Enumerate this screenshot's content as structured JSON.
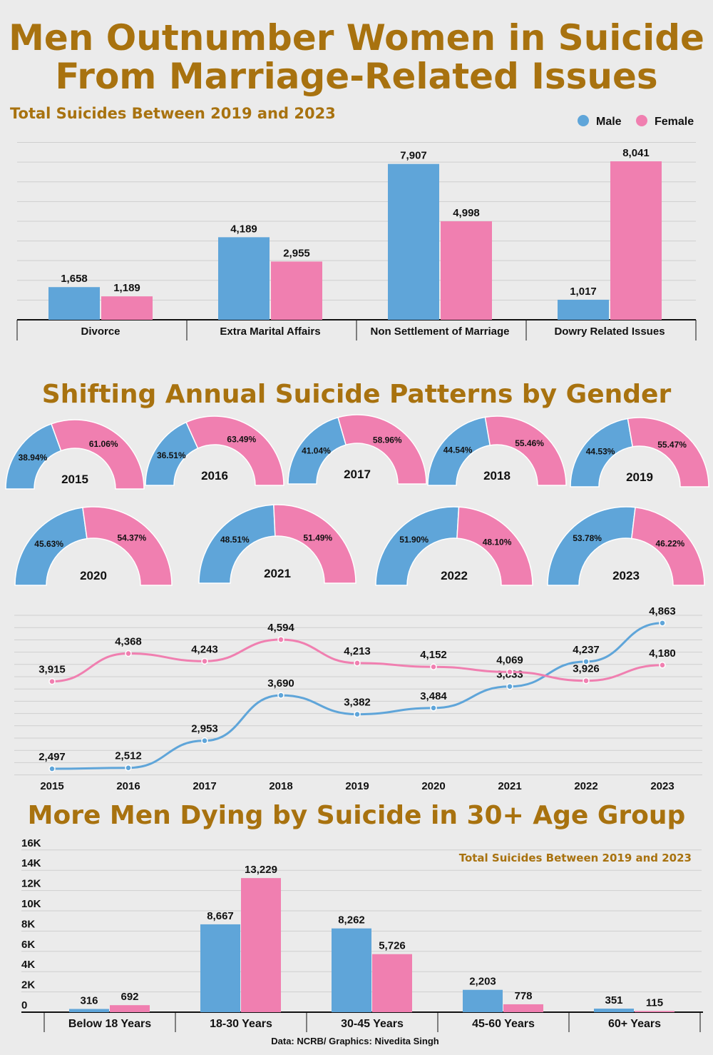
{
  "colors": {
    "male": "#5fa5d9",
    "female": "#f07fb0",
    "title": "#a8720f",
    "background": "#ebebeb",
    "grid": "#cfcfcf"
  },
  "header": {
    "title_line1": "Men Outnumber Women in Suicide",
    "title_line2": "From Marriage-Related Issues"
  },
  "section2_title": "Shifting Annual Suicide Patterns by Gender",
  "section3_title": "More Men Dying by Suicide in 30+ Age Group",
  "footer": {
    "source": "Data: NCRB/ Graphics: Nivedita Singh"
  },
  "chart_data": [
    {
      "type": "bar",
      "subtitle": "Total Suicides Between 2019 and 2023",
      "legend": {
        "placement": "top-right",
        "entries": [
          "Male",
          "Female"
        ]
      },
      "categories": [
        "Divorce",
        "Extra Marital Affairs",
        "Non Settlement of Marriage",
        "Dowry Related Issues"
      ],
      "series": [
        {
          "name": "Male",
          "values": [
            1658,
            4189,
            7907,
            1017
          ],
          "labels": [
            "1,658",
            "4,189",
            "7,907",
            "1,017"
          ]
        },
        {
          "name": "Female",
          "values": [
            1189,
            2955,
            4998,
            8041
          ],
          "labels": [
            "1,189",
            "2,955",
            "4,998",
            "8,041"
          ]
        }
      ],
      "ylim": [
        0,
        9000
      ],
      "grid": true
    },
    {
      "type": "pie",
      "style": "half-donut",
      "items": [
        {
          "year": "2015",
          "male": 38.94,
          "female": 61.06,
          "male_label": "38.94%",
          "female_label": "61.06%"
        },
        {
          "year": "2016",
          "male": 36.51,
          "female": 63.49,
          "male_label": "36.51%",
          "female_label": "63.49%"
        },
        {
          "year": "2017",
          "male": 41.04,
          "female": 58.96,
          "male_label": "41.04%",
          "female_label": "58.96%"
        },
        {
          "year": "2018",
          "male": 44.54,
          "female": 55.46,
          "male_label": "44.54%",
          "female_label": "55.46%"
        },
        {
          "year": "2019",
          "male": 44.53,
          "female": 55.47,
          "male_label": "44.53%",
          "female_label": "55.47%"
        },
        {
          "year": "2020",
          "male": 45.63,
          "female": 54.37,
          "male_label": "45.63%",
          "female_label": "54.37%"
        },
        {
          "year": "2021",
          "male": 48.51,
          "female": 51.49,
          "male_label": "48.51%",
          "female_label": "51.49%"
        },
        {
          "year": "2022",
          "male": 51.9,
          "female": 48.1,
          "male_label": "51.90%",
          "female_label": "48.10%"
        },
        {
          "year": "2023",
          "male": 53.78,
          "female": 46.22,
          "male_label": "53.78%",
          "female_label": "46.22%"
        }
      ]
    },
    {
      "type": "line",
      "x": [
        "2015",
        "2016",
        "2017",
        "2018",
        "2019",
        "2020",
        "2021",
        "2022",
        "2023"
      ],
      "series": [
        {
          "name": "Male",
          "values": [
            2497,
            2512,
            2953,
            3690,
            3382,
            3484,
            3833,
            4237,
            4863
          ],
          "labels": [
            "2,497",
            "2,512",
            "2,953",
            "3,690",
            "3,382",
            "3,484",
            "3,833",
            "4,237",
            "4,863"
          ]
        },
        {
          "name": "Female",
          "values": [
            3915,
            4368,
            4243,
            4594,
            4213,
            4152,
            4069,
            3926,
            4180
          ],
          "labels": [
            "3,915",
            "4,368",
            "4,243",
            "4,594",
            "4,213",
            "4,152",
            "4,069",
            "3,926",
            "4,180"
          ]
        }
      ],
      "ylim": [
        2370,
        5000
      ],
      "grid": true
    },
    {
      "type": "bar",
      "subtitle": "Total Suicides Between 2019 and 2023",
      "categories": [
        "Below 18 Years",
        "18-30 Years",
        "30-45 Years",
        "45-60 Years",
        "60+ Years"
      ],
      "series": [
        {
          "name": "Male",
          "values": [
            316,
            8667,
            8262,
            2203,
            351
          ],
          "labels": [
            "316",
            "8,667",
            "8,262",
            "2,203",
            "351"
          ]
        },
        {
          "name": "Female",
          "values": [
            692,
            13229,
            5726,
            778,
            115
          ],
          "labels": [
            "692",
            "13,229",
            "5,726",
            "778",
            "115"
          ]
        }
      ],
      "yticks": [
        "0",
        "2K",
        "4K",
        "6K",
        "8K",
        "10K",
        "12K",
        "14K",
        "16K"
      ],
      "ylim": [
        0,
        16000
      ],
      "grid": true
    }
  ]
}
